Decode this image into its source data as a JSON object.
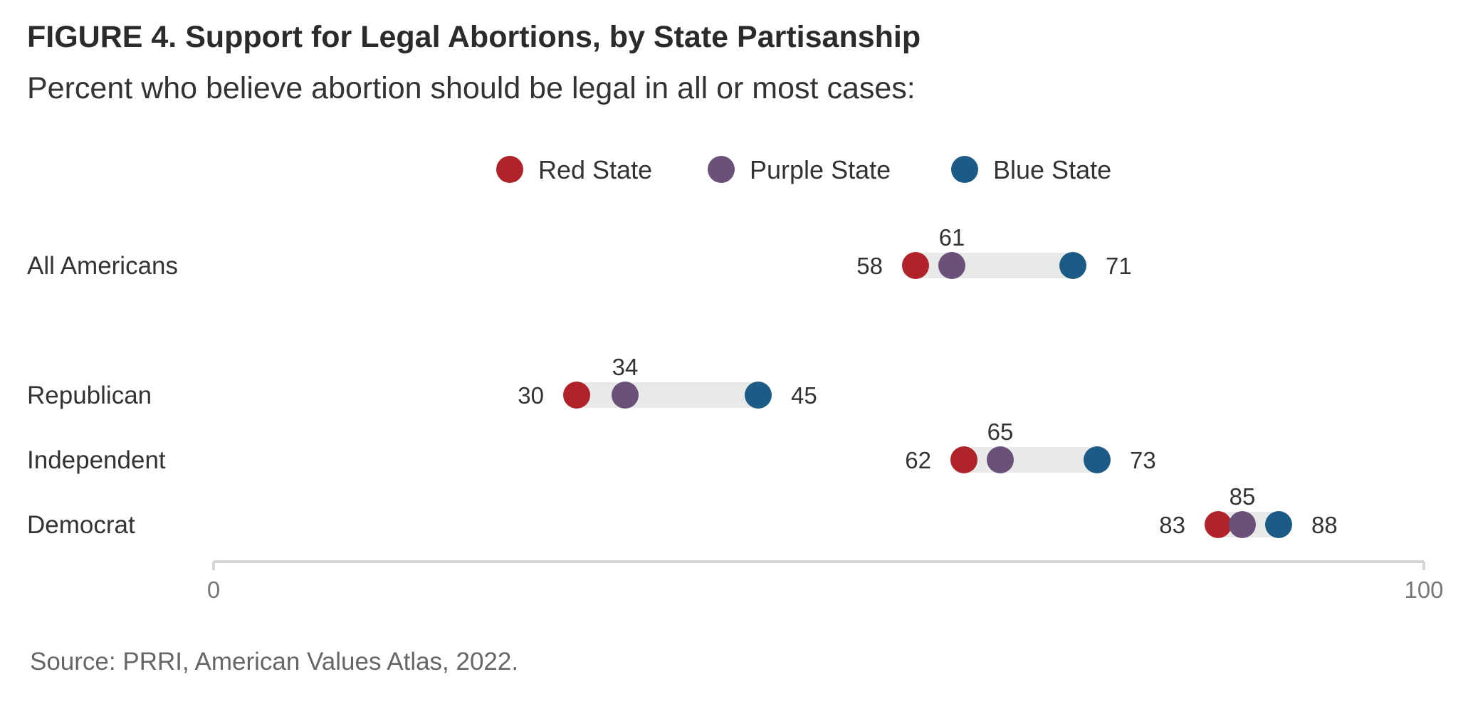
{
  "figure": {
    "title": "FIGURE 4.  Support for Legal Abortions, by State Partisanship",
    "subtitle": "Percent who believe abortion should be legal in all or most cases:",
    "source": "Source: PRRI, American Values Atlas, 2022."
  },
  "colors": {
    "red_state": "#b0232a",
    "purple_state": "#6b5079",
    "blue_state": "#1d5b87",
    "range_bar": "#e8e9e9",
    "axis": "#d4d4d4",
    "tick_label": "#777777"
  },
  "chart_data": {
    "type": "scatter",
    "subtype": "dumbbell",
    "categories": [
      "All Americans",
      "Republican",
      "Independent",
      "Democrat"
    ],
    "series": [
      {
        "name": "Red State",
        "values": [
          58,
          30,
          62,
          83
        ]
      },
      {
        "name": "Purple State",
        "values": [
          61,
          34,
          65,
          85
        ]
      },
      {
        "name": "Blue State",
        "values": [
          71,
          45,
          73,
          88
        ]
      }
    ],
    "xlim": [
      0,
      100
    ],
    "x_ticks": [
      "0",
      "100"
    ],
    "legend": "top-center",
    "grid": false
  }
}
